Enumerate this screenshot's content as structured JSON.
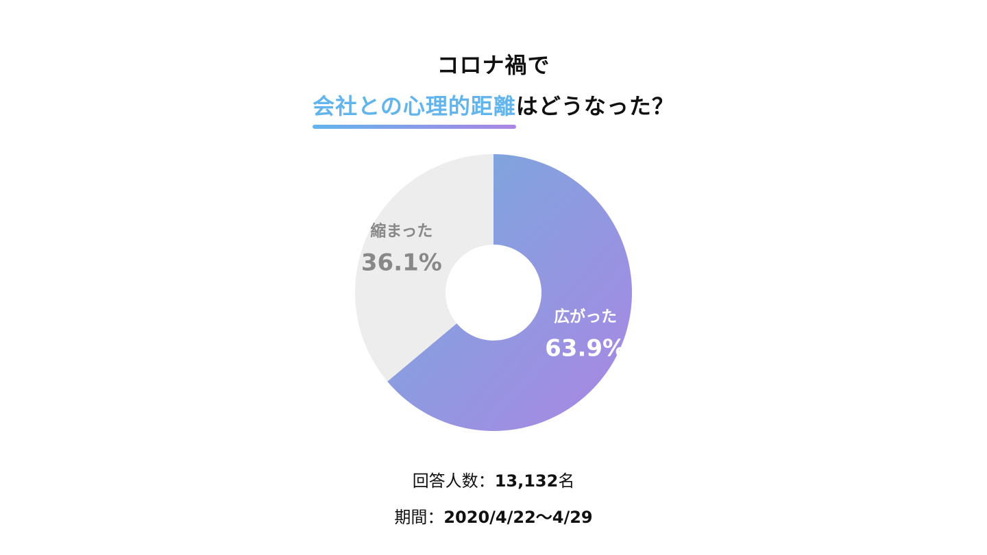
{
  "title": {
    "line1": "コロナ禍で",
    "highlight": "会社との心理的距離",
    "rest": "はどうなった？"
  },
  "colors": {
    "title_highlight": "#62b4ec",
    "underline_start": "#62b4ec",
    "underline_end": "#ab86e4",
    "slice_widened_start": "#74acdc",
    "slice_widened_end": "#ab86e4",
    "slice_shrunk": "#ededed",
    "label_on_color": "#ffffff",
    "label_on_gray": "#888888"
  },
  "chart_data": {
    "type": "pie",
    "donut": true,
    "slices": [
      {
        "label": "広がった",
        "value": 63.9,
        "display": "63.9%"
      },
      {
        "label": "縮まった",
        "value": 36.1,
        "display": "36.1%"
      }
    ]
  },
  "footer": {
    "respondents_label": "回答人数：",
    "respondents_value": "13,132",
    "respondents_unit": "名",
    "period_label": "期間：",
    "period_value": "2020/4/22〜4/29"
  }
}
